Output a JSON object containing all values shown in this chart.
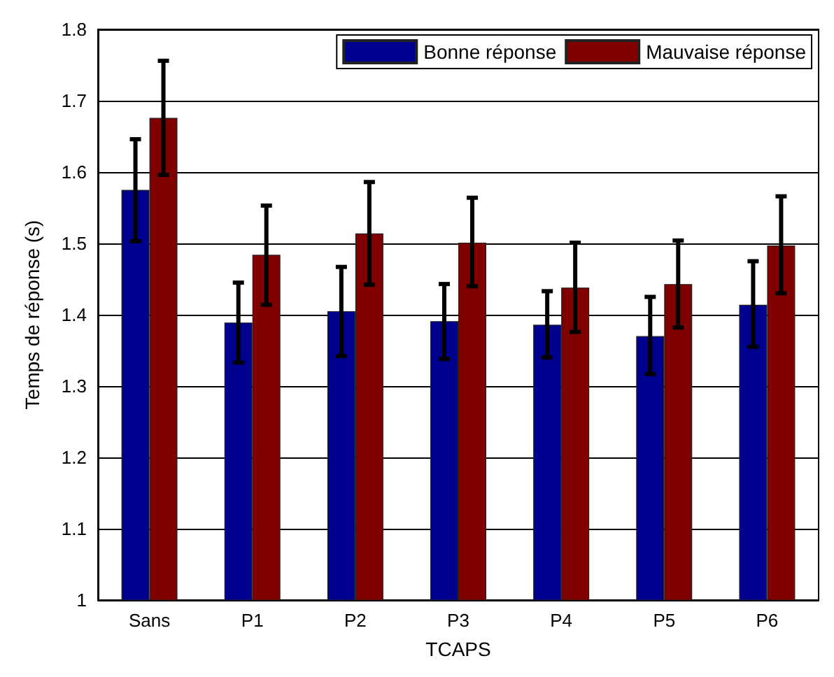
{
  "chart_data": {
    "type": "bar",
    "xlabel": "TCAPS",
    "ylabel": "Temps de réponse (s)",
    "categories": [
      "Sans",
      "P1",
      "P2",
      "P3",
      "P4",
      "P5",
      "P6"
    ],
    "series": [
      {
        "name": "Bonne réponse",
        "color": "#00008f",
        "values": [
          1.575,
          1.389,
          1.405,
          1.391,
          1.386,
          1.37,
          1.414
        ],
        "errors": [
          [
            1.503,
            1.646
          ],
          [
            1.333,
            1.445
          ],
          [
            1.342,
            1.467
          ],
          [
            1.338,
            1.443
          ],
          [
            1.34,
            1.433
          ],
          [
            1.317,
            1.425
          ],
          [
            1.355,
            1.475
          ]
        ]
      },
      {
        "name": "Mauvaise réponse",
        "color": "#800000",
        "values": [
          1.676,
          1.484,
          1.514,
          1.501,
          1.438,
          1.443,
          1.497
        ],
        "errors": [
          [
            1.596,
            1.756
          ],
          [
            1.414,
            1.553
          ],
          [
            1.442,
            1.586
          ],
          [
            1.44,
            1.564
          ],
          [
            1.376,
            1.501
          ],
          [
            1.382,
            1.504
          ],
          [
            1.43,
            1.566
          ]
        ]
      }
    ],
    "ylim": [
      1,
      1.8
    ],
    "yticks": [
      1,
      1.1,
      1.2,
      1.3,
      1.4,
      1.5,
      1.6,
      1.7,
      1.8
    ],
    "grid": "y",
    "legend": "top right"
  }
}
